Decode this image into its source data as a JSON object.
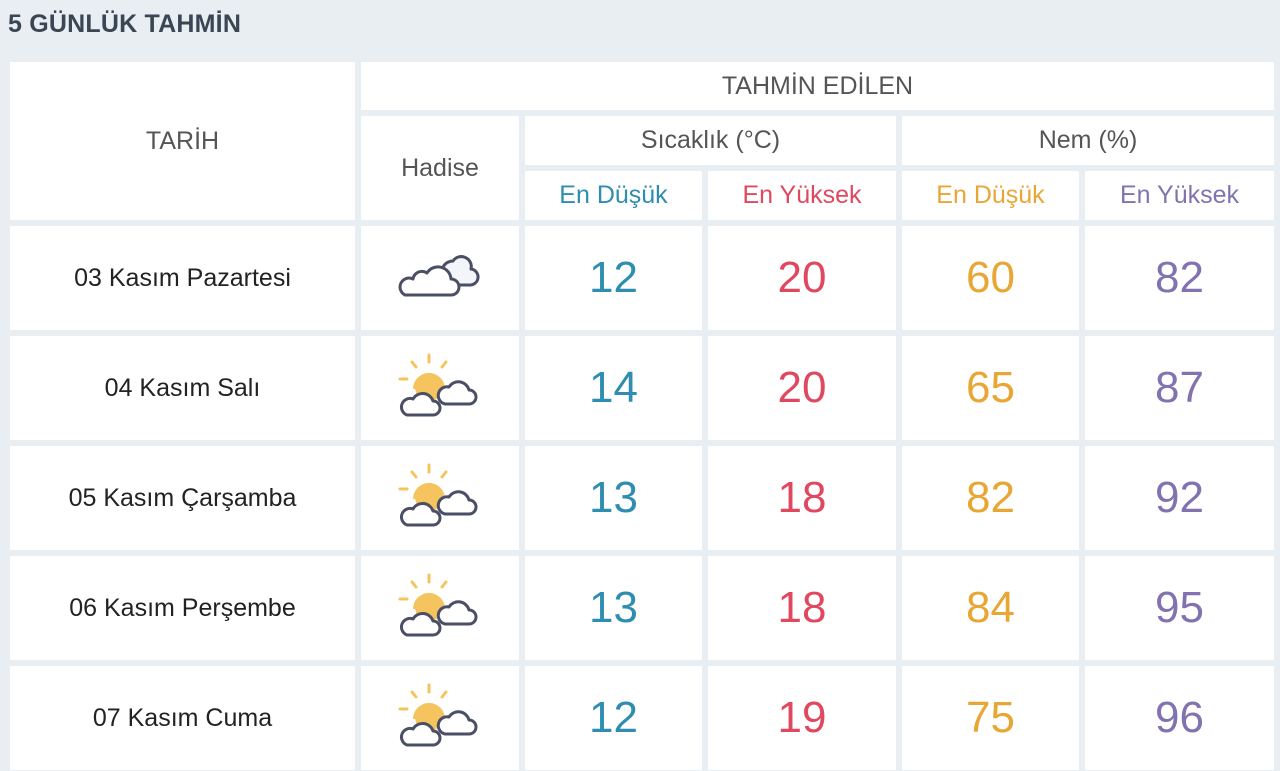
{
  "title": "5 GÜNLÜK TAHMİN",
  "header": {
    "date_col": "TARİH",
    "forecast_group": "TAHMİN EDİLEN",
    "event_col": "Hadise",
    "temp_group": "Sıcaklık (°C)",
    "humidity_group": "Nem (%)",
    "temp_min": "En Düşük",
    "temp_max": "En Yüksek",
    "hum_min": "En Düşük",
    "hum_max": "En Yüksek"
  },
  "colors": {
    "temp_min": "#2f8db0",
    "temp_max": "#e0485f",
    "hum_min": "#e8a735",
    "hum_max": "#8272b0"
  },
  "rows": [
    {
      "date": "03 Kasım Pazartesi",
      "icon": "cloudy-icon",
      "temp_min": "12",
      "temp_max": "20",
      "hum_min": "60",
      "hum_max": "82"
    },
    {
      "date": "04 Kasım Salı",
      "icon": "partly-cloudy-icon",
      "temp_min": "14",
      "temp_max": "20",
      "hum_min": "65",
      "hum_max": "87"
    },
    {
      "date": "05 Kasım Çarşamba",
      "icon": "partly-cloudy-icon",
      "temp_min": "13",
      "temp_max": "18",
      "hum_min": "82",
      "hum_max": "92"
    },
    {
      "date": "06 Kasım Perşembe",
      "icon": "partly-cloudy-icon",
      "temp_min": "13",
      "temp_max": "18",
      "hum_min": "84",
      "hum_max": "95"
    },
    {
      "date": "07 Kasım Cuma",
      "icon": "partly-cloudy-icon",
      "temp_min": "12",
      "temp_max": "19",
      "hum_min": "75",
      "hum_max": "96"
    }
  ]
}
